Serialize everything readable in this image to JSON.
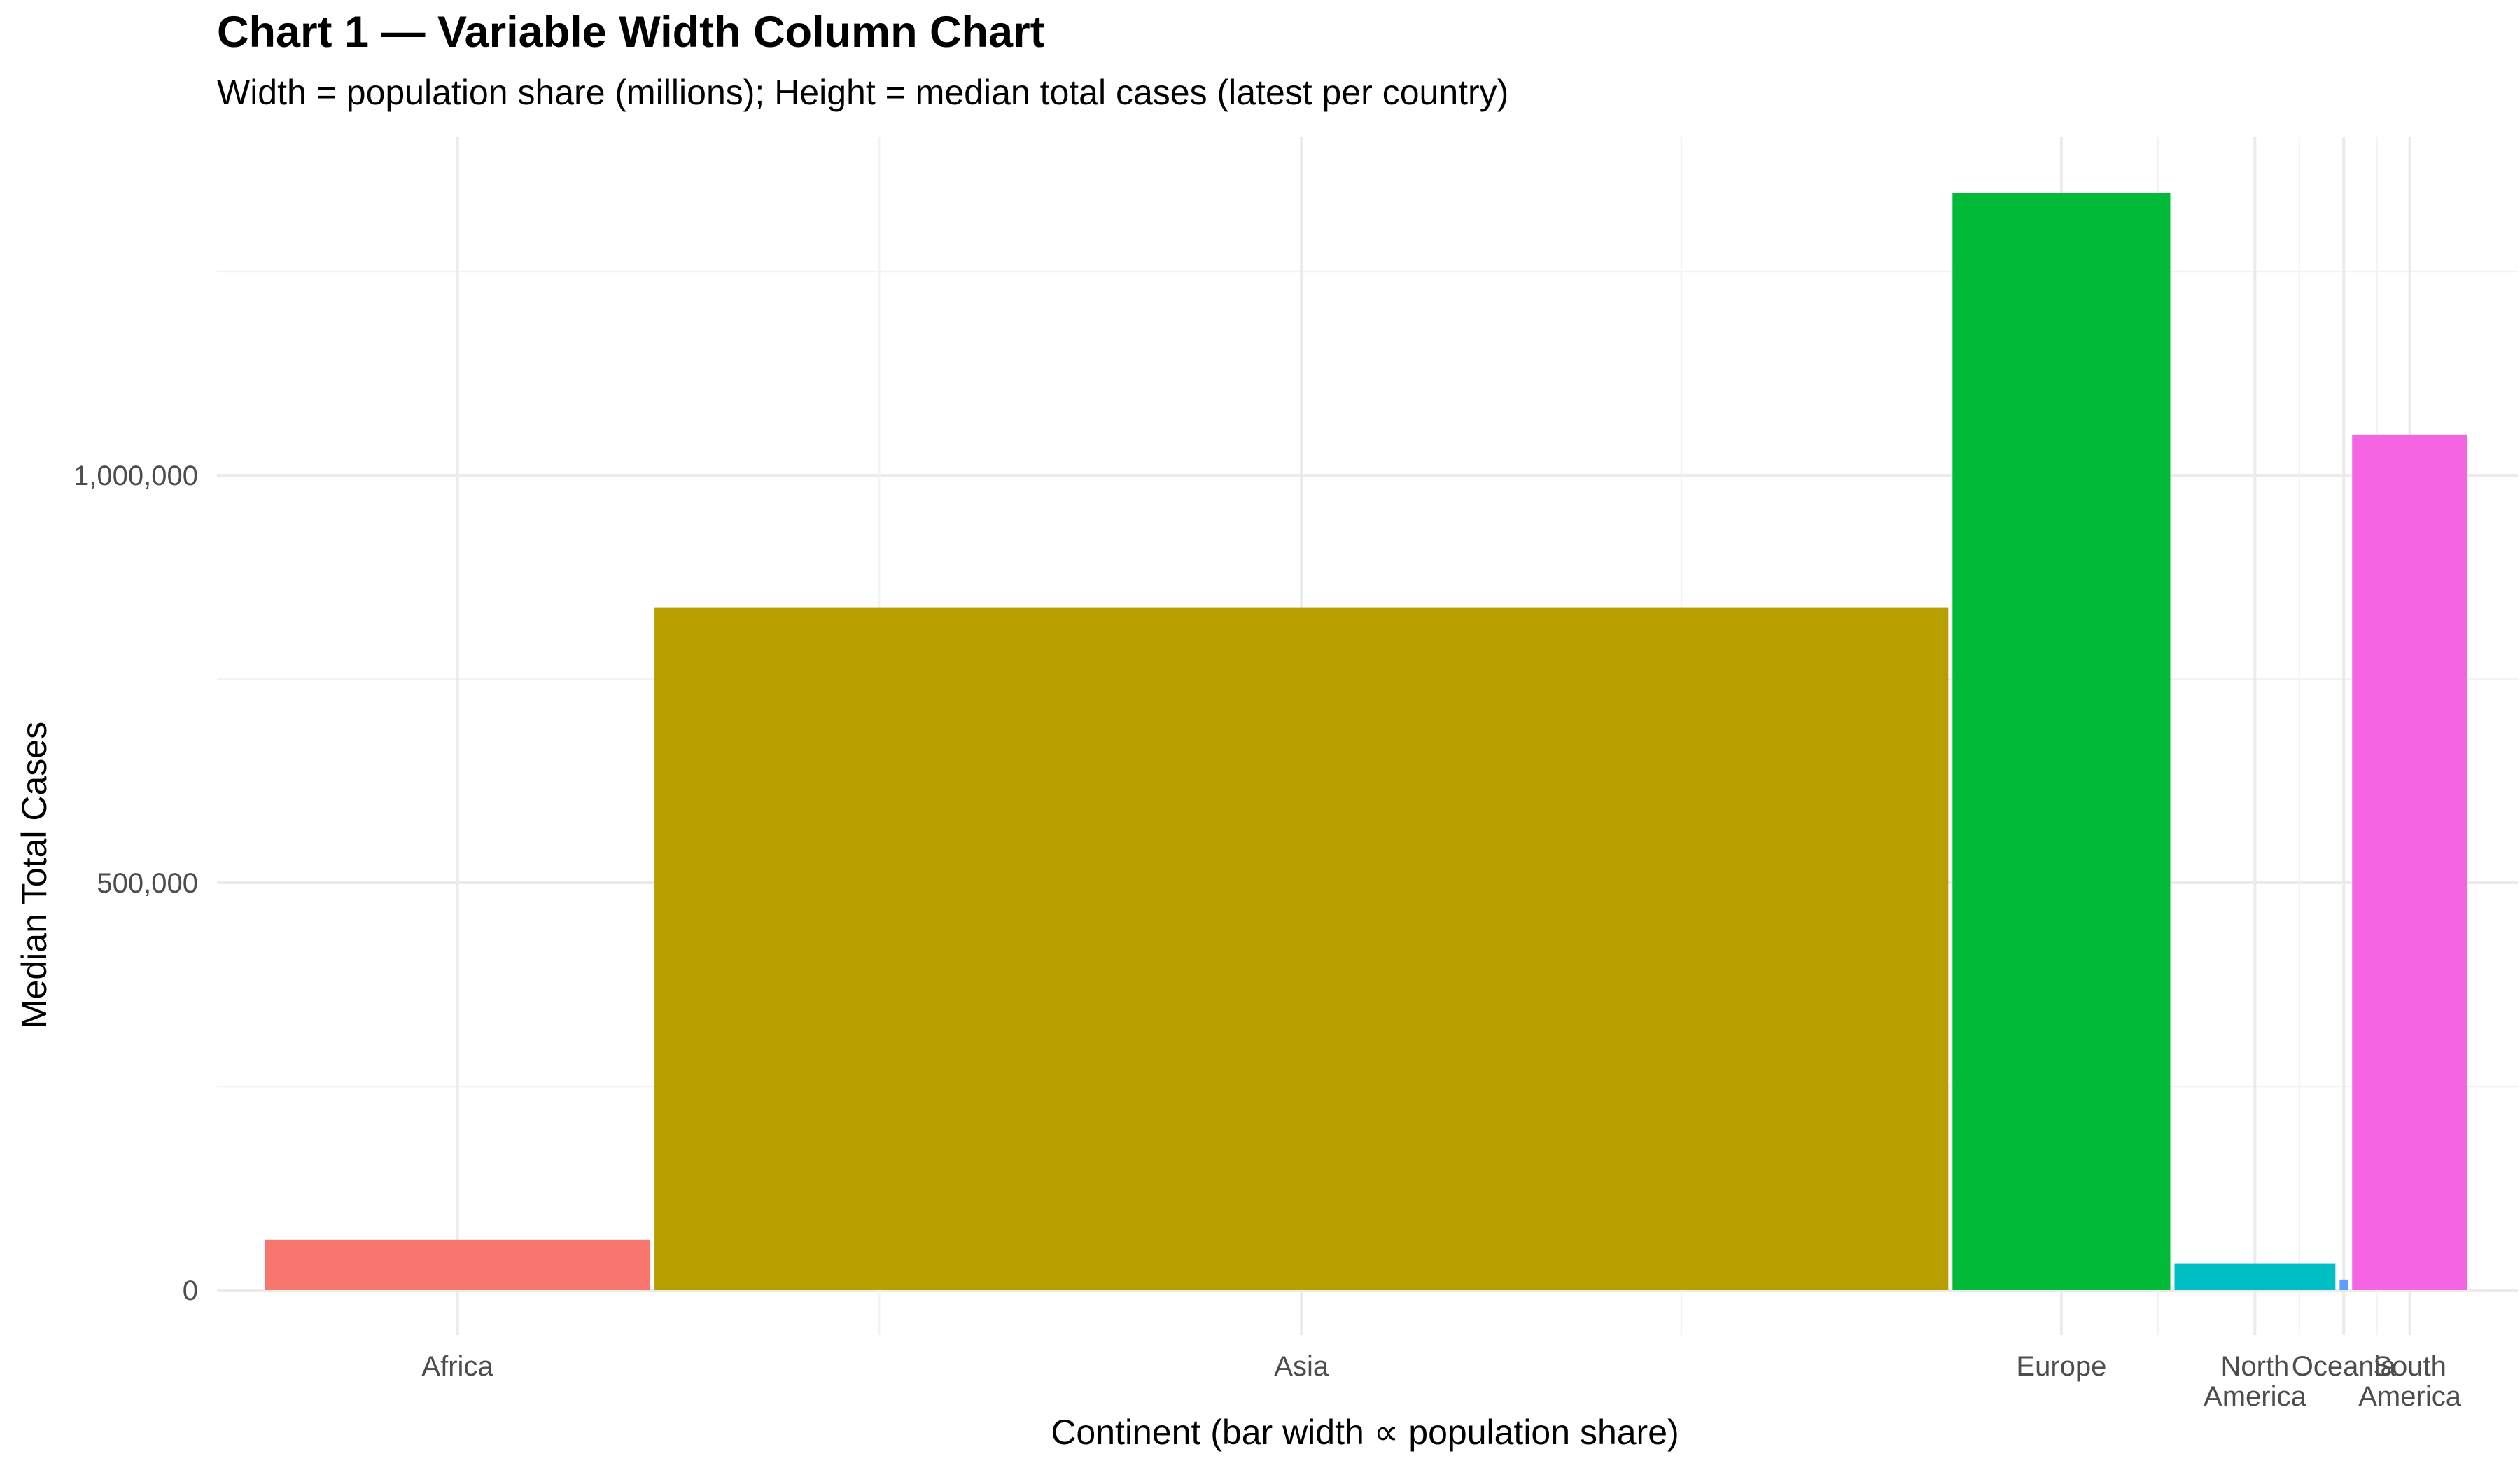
{
  "chart_data": {
    "type": "bar",
    "variant": "variable-width column",
    "title": "Chart 1 — Variable Width Column Chart",
    "subtitle": "Width = population share (millions); Height = median total cases (latest per country)",
    "xlabel": "Continent (bar width ∝ population share)",
    "ylabel": "Median Total Cases",
    "ylim": [
      -55000,
      1415000
    ],
    "y_ticks": [
      0,
      500000,
      1000000
    ],
    "y_tick_labels": [
      "0",
      "500,000",
      "1,000,000"
    ],
    "grid": true,
    "legend": "none",
    "categories": [
      "Africa",
      "Asia",
      "Europe",
      "North America",
      "Oceania",
      "South America"
    ],
    "category_tick_labels": [
      [
        "Africa"
      ],
      [
        "Asia"
      ],
      [
        "Europe"
      ],
      [
        "North",
        "America"
      ],
      [
        "Oceania"
      ],
      [
        "South",
        "America"
      ]
    ],
    "population_millions": [
      1370,
      4560,
      780,
      580,
      44,
      420
    ],
    "values": [
      62000,
      838000,
      1347000,
      33000,
      13000,
      1050000
    ],
    "colors": [
      "#F8766D",
      "#B79F00",
      "#00BA38",
      "#00BFC4",
      "#619CFF",
      "#F564E3"
    ]
  }
}
